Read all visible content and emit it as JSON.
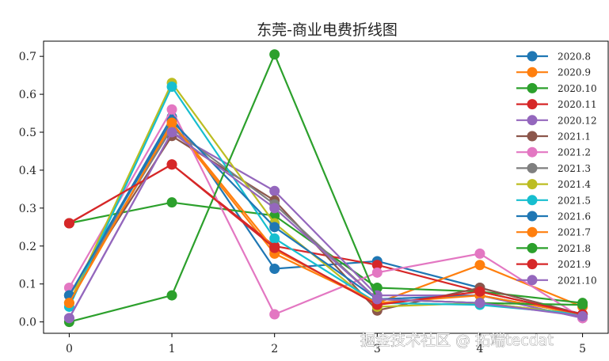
{
  "chart_data": {
    "type": "line",
    "title": "东莞-商业电费折线图",
    "x": [
      0,
      1,
      2,
      3,
      4,
      5
    ],
    "xlim": [
      -0.25,
      5.25
    ],
    "ylim": [
      -0.03,
      0.74
    ],
    "xticks": [
      "0",
      "1",
      "2",
      "3",
      "4",
      "5"
    ],
    "yticks": [
      "0.0",
      "0.1",
      "0.2",
      "0.3",
      "0.4",
      "0.5",
      "0.6",
      "0.7"
    ],
    "grid": false,
    "legend_position": "top-right",
    "series": [
      {
        "name": "2020.8",
        "color": "#1f77b4",
        "values": [
          0.07,
          0.54,
          0.14,
          0.16,
          0.09,
          0.02
        ]
      },
      {
        "name": "2020.9",
        "color": "#ff7f0e",
        "values": [
          0.05,
          0.52,
          0.18,
          0.05,
          0.15,
          0.04
        ]
      },
      {
        "name": "2020.10",
        "color": "#2ca02c",
        "values": [
          0.26,
          0.315,
          0.28,
          0.09,
          0.08,
          0.05
        ]
      },
      {
        "name": "2020.11",
        "color": "#d62728",
        "values": [
          0.26,
          0.415,
          0.2,
          0.15,
          0.08,
          0.02
        ]
      },
      {
        "name": "2020.12",
        "color": "#9467bd",
        "values": [
          0.01,
          0.5,
          0.345,
          0.07,
          0.07,
          0.01
        ]
      },
      {
        "name": "2021.1",
        "color": "#8c564b",
        "values": [
          0.07,
          0.49,
          0.32,
          0.03,
          0.09,
          0.02
        ]
      },
      {
        "name": "2021.2",
        "color": "#e377c2",
        "values": [
          0.09,
          0.56,
          0.02,
          0.13,
          0.18,
          0.01
        ]
      },
      {
        "name": "2021.3",
        "color": "#7f7f7f",
        "values": [
          0.07,
          0.51,
          0.31,
          0.06,
          0.05,
          0.02
        ]
      },
      {
        "name": "2021.4",
        "color": "#bcbd22",
        "values": [
          0.05,
          0.63,
          0.26,
          0.04,
          0.05,
          0.02
        ]
      },
      {
        "name": "2021.5",
        "color": "#17becf",
        "values": [
          0.04,
          0.62,
          0.22,
          0.05,
          0.045,
          0.02
        ]
      },
      {
        "name": "2021.6",
        "color": "#1f77b4",
        "values": [
          0.07,
          0.53,
          0.25,
          0.06,
          0.07,
          0.02
        ]
      },
      {
        "name": "2021.7",
        "color": "#ff7f0e",
        "values": [
          0.05,
          0.525,
          0.19,
          0.05,
          0.07,
          0.02
        ]
      },
      {
        "name": "2021.8",
        "color": "#2ca02c",
        "values": [
          0.0,
          0.07,
          0.705,
          0.06,
          0.05,
          0.045
        ]
      },
      {
        "name": "2021.9",
        "color": "#d62728",
        "values": [
          0.26,
          0.415,
          0.195,
          0.045,
          0.08,
          0.02
        ]
      },
      {
        "name": "2021.10",
        "color": "#9467bd",
        "values": [
          0.01,
          0.5,
          0.3,
          0.06,
          0.05,
          0.015
        ]
      }
    ]
  },
  "watermark": "掘金技术社区 @ 拓端tecdat"
}
